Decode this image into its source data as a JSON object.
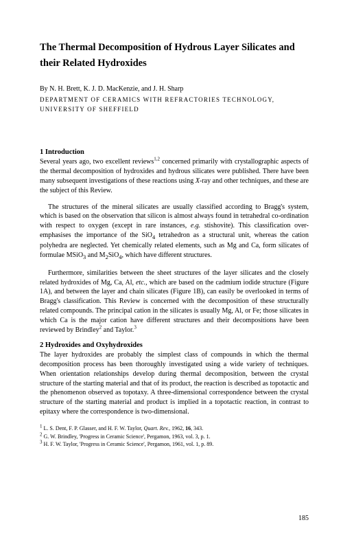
{
  "title": "The Thermal Decomposition of Hydrous Layer Silicates and their Related Hydroxides",
  "byline": "By N. H. Brett, K. J. D. MacKenzie, and J. H. Sharp",
  "affiliation_line1": "DEPARTMENT OF CERAMICS WITH REFRACTORIES TECHNOLOGY,",
  "affiliation_line2": "UNIVERSITY OF SHEFFIELD",
  "section1_heading": "1 Introduction",
  "p1": "Several years ago, two excellent reviews1,2 concerned primarily with crystallographic aspects of the thermal decomposition of hydroxides and hydrous silicates were published. There have been many subsequent investigations of these reactions using X-ray and other techniques, and these are the subject of this Review.",
  "p2": "The structures of the mineral silicates are usually classified according to Bragg's system, which is based on the observation that silicon is almost always found in tetrahedral co-ordination with respect to oxygen (except in rare instances, e.g. stishovite). This classification over-emphasises the importance of the SiO4 tetrahedron as a structural unit, whereas the cation polyhedra are neglected. Yet chemically related elements, such as Mg and Ca, form silicates of formulae MSiO3 and M2SiO4, which have different structures.",
  "p3": "Furthermore, similarities between the sheet structures of the layer silicates and the closely related hydroxides of Mg, Ca, Al, etc., which are based on the cadmium iodide structure (Figure 1A), and between the layer and chain silicates (Figure 1B), can easily be overlooked in terms of Bragg's classification. This Review is concerned with the decomposition of these structurally related compounds. The principal cation in the silicates is usually Mg, Al, or Fe; those silicates in which Ca is the major cation have different structures and their decompositions have been reviewed by Brindley2 and Taylor.3",
  "section2_heading": "2 Hydroxides and Oxyhydroxides",
  "p4": "The layer hydroxides are probably the simplest class of compounds in which the thermal decomposition process has been thoroughly investigated using a wide variety of techniques. When orientation relationships develop during thermal decomposition, between the crystal structure of the starting material and that of its product, the reaction is described as topotactic and the phenomenon observed as topotaxy. A three-dimensional correspondence between the crystal structure of the starting material and product is implied in a topotactic reaction, in contrast to epitaxy where the correspondence is two-dimensional.",
  "footnotes": {
    "f1": "1 L. S. Dent, F. P. Glasser, and H. F. W. Taylor, Quart. Rev., 1962, 16, 343.",
    "f2": "2 G. W. Brindley, 'Progress in Ceramic Science', Pergamon, 1963, vol. 3, p. 1.",
    "f3": "3 H. F. W. Taylor, 'Progress in Ceramic Science', Pergamon, 1961, vol. 1, p. 89."
  },
  "page_number": "185"
}
